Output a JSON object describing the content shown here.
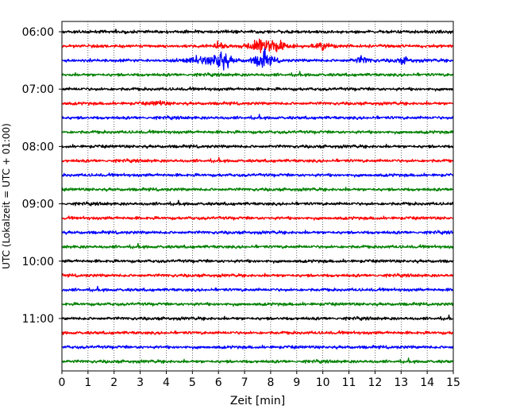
{
  "chart_data": {
    "type": "line",
    "xlabel": "Zeit  [min]",
    "ylabel": "UTC (Lokalzeit = UTC + 01:00)",
    "xlim": [
      0,
      15
    ],
    "x_ticks": [
      0,
      1,
      2,
      3,
      4,
      5,
      6,
      7,
      8,
      9,
      10,
      11,
      12,
      13,
      14,
      15
    ],
    "y_tick_labels": [
      "06:00",
      "07:00",
      "08:00",
      "09:00",
      "10:00",
      "11:00"
    ],
    "row_interval_min": 15,
    "grid_x": true,
    "grid_style": "dotted",
    "traces": [
      {
        "start": "06:00",
        "color": "#000000",
        "events": []
      },
      {
        "start": "06:15",
        "color": "#ff0000",
        "events": [
          {
            "t": 7.6,
            "amp": 0.85
          },
          {
            "t": 8.3,
            "amp": 0.4
          },
          {
            "t": 6.0,
            "amp": 0.25
          },
          {
            "t": 10.0,
            "amp": 0.2
          }
        ]
      },
      {
        "start": "06:30",
        "color": "#0000ff",
        "events": [
          {
            "t": 6.1,
            "amp": 1.0
          },
          {
            "t": 7.7,
            "amp": 0.8
          },
          {
            "t": 5.2,
            "amp": 0.3
          },
          {
            "t": 11.5,
            "amp": 0.25
          },
          {
            "t": 13.1,
            "amp": 0.2
          }
        ]
      },
      {
        "start": "06:45",
        "color": "#008000",
        "events": []
      },
      {
        "start": "07:00",
        "color": "#000000",
        "events": []
      },
      {
        "start": "07:15",
        "color": "#ff0000",
        "events": [
          {
            "t": 3.7,
            "amp": 0.15
          }
        ]
      },
      {
        "start": "07:30",
        "color": "#0000ff",
        "events": []
      },
      {
        "start": "07:45",
        "color": "#008000",
        "events": []
      },
      {
        "start": "08:00",
        "color": "#000000",
        "events": []
      },
      {
        "start": "08:15",
        "color": "#ff0000",
        "events": []
      },
      {
        "start": "08:30",
        "color": "#0000ff",
        "events": []
      },
      {
        "start": "08:45",
        "color": "#008000",
        "events": []
      },
      {
        "start": "09:00",
        "color": "#000000",
        "events": []
      },
      {
        "start": "09:15",
        "color": "#ff0000",
        "events": []
      },
      {
        "start": "09:30",
        "color": "#0000ff",
        "events": []
      },
      {
        "start": "09:45",
        "color": "#008000",
        "events": []
      },
      {
        "start": "10:00",
        "color": "#000000",
        "events": []
      },
      {
        "start": "10:15",
        "color": "#ff0000",
        "events": []
      },
      {
        "start": "10:30",
        "color": "#0000ff",
        "events": []
      },
      {
        "start": "10:45",
        "color": "#008000",
        "events": []
      },
      {
        "start": "11:00",
        "color": "#000000",
        "events": []
      },
      {
        "start": "11:15",
        "color": "#ff0000",
        "events": []
      },
      {
        "start": "11:30",
        "color": "#0000ff",
        "events": []
      },
      {
        "start": "11:45",
        "color": "#008000",
        "events": []
      }
    ]
  }
}
